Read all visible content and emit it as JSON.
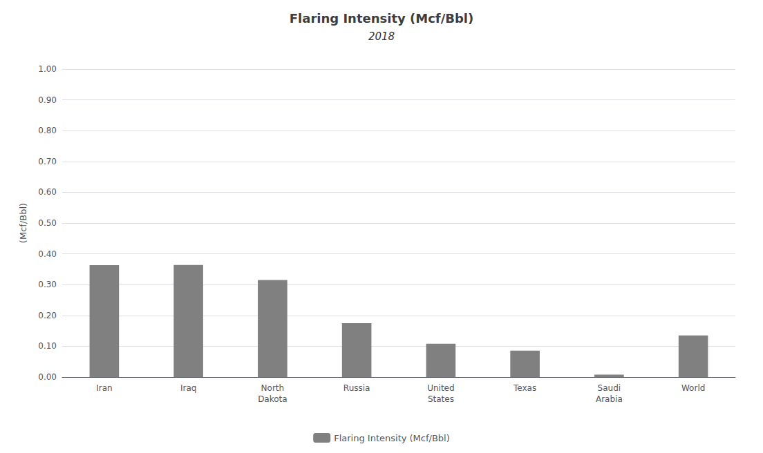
{
  "chart_data": {
    "type": "bar",
    "title": "Flaring Intensity (Mcf/Bbl)",
    "subtitle": "2018",
    "categories": [
      "Iran",
      "Iraq",
      "North\nDakota",
      "Russia",
      "United\nStates",
      "Texas",
      "Saudi\nArabia",
      "World"
    ],
    "series": [
      {
        "name": "Flaring Intensity (Mcf/Bbl)",
        "color": "#808080",
        "values": [
          0.363,
          0.364,
          0.315,
          0.175,
          0.108,
          0.086,
          0.008,
          0.135
        ]
      }
    ],
    "ylabel": "(Mcf/Bbl)",
    "ylim": [
      0,
      1.0
    ],
    "yticks": [
      {
        "value": 0.0,
        "label": "0.00"
      },
      {
        "value": 0.1,
        "label": "0.10"
      },
      {
        "value": 0.2,
        "label": "0.20"
      },
      {
        "value": 0.3,
        "label": "0.30"
      },
      {
        "value": 0.4,
        "label": "0.40"
      },
      {
        "value": 0.5,
        "label": "0.50"
      },
      {
        "value": 0.6,
        "label": "0.60"
      },
      {
        "value": 0.7,
        "label": "0.70"
      },
      {
        "value": 0.8,
        "label": "0.80"
      },
      {
        "value": 0.9,
        "label": "0.90"
      },
      {
        "value": 1.0,
        "label": "1.00"
      }
    ],
    "grid": true,
    "legend": "bottom"
  }
}
